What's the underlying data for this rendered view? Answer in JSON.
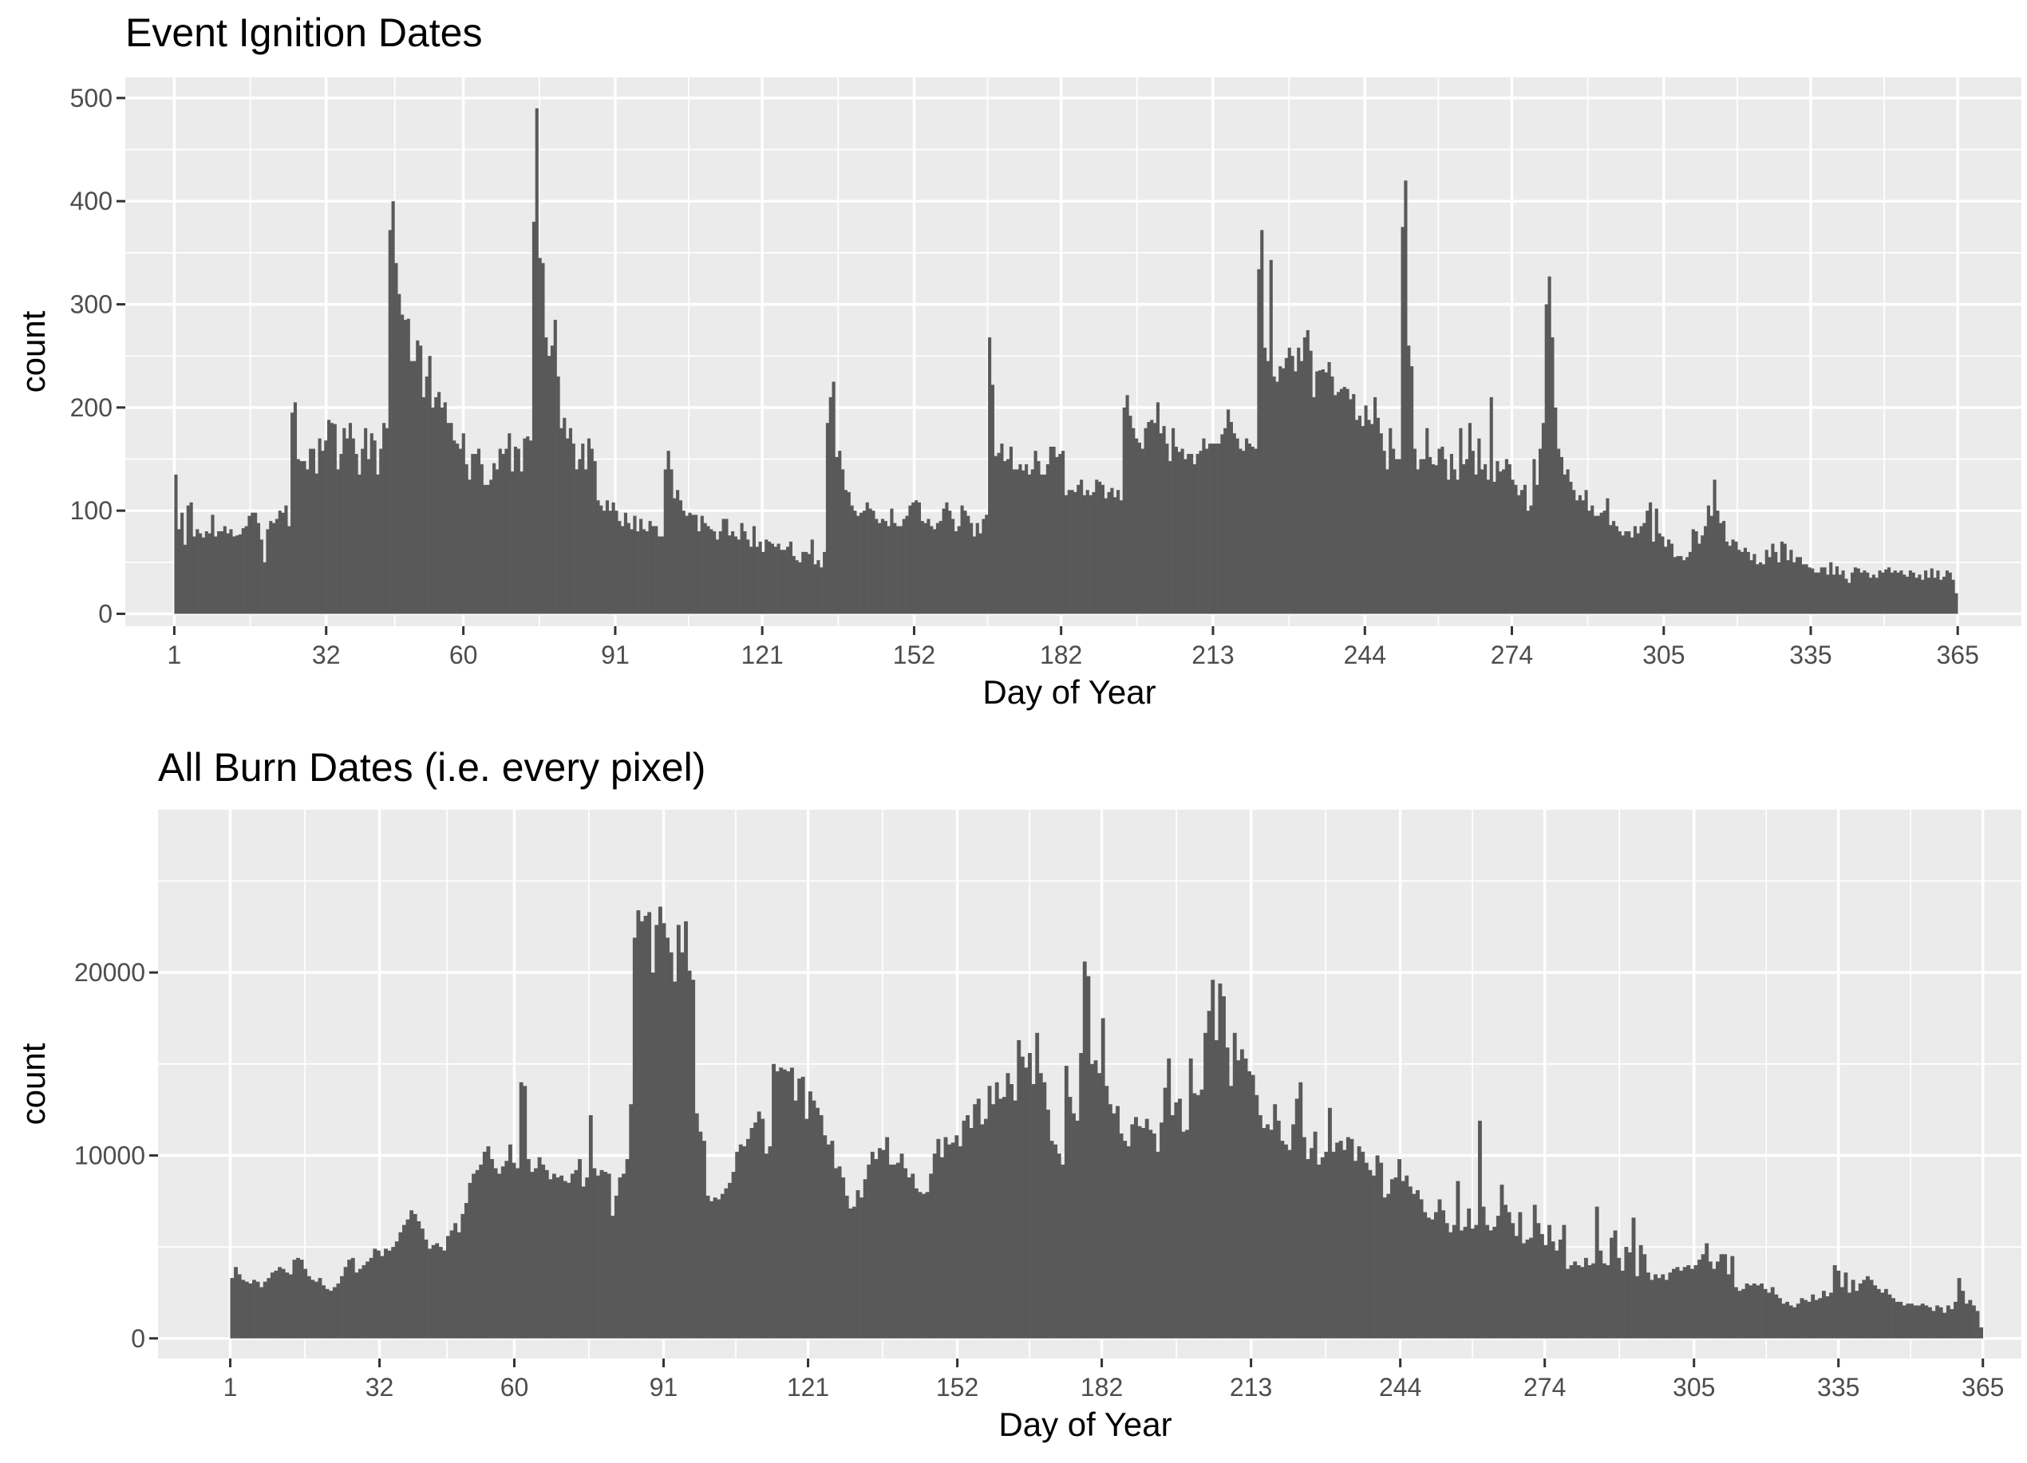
{
  "colors": {
    "bar": "#595959",
    "panel": "#ebebeb",
    "grid": "#ffffff",
    "tick_text": "#4d4d4d"
  },
  "chart_data": [
    {
      "type": "bar",
      "title": "Event Ignition Dates",
      "xlabel": "Day of Year",
      "ylabel": "count",
      "xlim": [
        -9,
        378
      ],
      "ylim": [
        -12,
        520
      ],
      "x_ticks": [
        1,
        32,
        60,
        91,
        121,
        152,
        182,
        213,
        244,
        274,
        305,
        335,
        365
      ],
      "y_ticks": [
        0,
        100,
        200,
        300,
        400,
        500
      ],
      "y_tick_labels": [
        "0",
        "100",
        "200",
        "300",
        "400",
        "500"
      ],
      "grid": true,
      "legend": "none",
      "x_start": 1,
      "values": [
        135,
        82,
        98,
        67,
        105,
        108,
        75,
        82,
        78,
        74,
        80,
        78,
        96,
        75,
        80,
        80,
        85,
        78,
        82,
        75,
        76,
        77,
        83,
        85,
        95,
        98,
        98,
        88,
        72,
        50,
        82,
        90,
        88,
        92,
        100,
        98,
        105,
        85,
        195,
        205,
        150,
        148,
        148,
        140,
        160,
        160,
        136,
        170,
        158,
        168,
        188,
        185,
        184,
        140,
        155,
        180,
        170,
        185,
        170,
        155,
        135,
        160,
        180,
        150,
        175,
        168,
        135,
        160,
        185,
        180,
        372,
        400,
        340,
        310,
        290,
        285,
        286,
        245,
        245,
        265,
        260,
        210,
        230,
        250,
        200,
        210,
        215,
        200,
        205,
        185,
        185,
        168,
        165,
        160,
        175,
        145,
        130,
        155,
        155,
        160,
        145,
        125,
        125,
        130,
        146,
        140,
        160,
        155,
        160,
        175,
        138,
        162,
        160,
        138,
        170,
        172,
        168,
        380,
        490,
        345,
        340,
        268,
        250,
        260,
        285,
        230,
        180,
        190,
        170,
        180,
        165,
        140,
        150,
        165,
        140,
        170,
        160,
        148,
        110,
        105,
        100,
        110,
        100,
        108,
        100,
        90,
        85,
        98,
        88,
        82,
        95,
        80,
        92,
        82,
        80,
        90,
        85,
        85,
        75,
        75,
        140,
        158,
        140,
        112,
        120,
        110,
        100,
        95,
        98,
        96,
        96,
        80,
        95,
        88,
        85,
        82,
        80,
        72,
        80,
        92,
        92,
        76,
        80,
        75,
        72,
        88,
        80,
        72,
        65,
        85,
        65,
        70,
        60,
        72,
        70,
        68,
        65,
        68,
        62,
        62,
        65,
        70,
        56,
        52,
        50,
        60,
        60,
        58,
        72,
        48,
        52,
        45,
        60,
        185,
        210,
        225,
        152,
        158,
        140,
        120,
        118,
        105,
        100,
        95,
        98,
        100,
        108,
        102,
        100,
        92,
        88,
        92,
        90,
        85,
        102,
        88,
        85,
        85,
        92,
        95,
        105,
        108,
        110,
        108,
        90,
        88,
        92,
        85,
        82,
        88,
        90,
        102,
        108,
        100,
        92,
        80,
        85,
        105,
        100,
        95,
        88,
        75,
        88,
        78,
        92,
        96,
        268,
        222,
        153,
        156,
        165,
        148,
        150,
        162,
        140,
        140,
        145,
        139,
        145,
        135,
        140,
        158,
        148,
        135,
        135,
        145,
        162,
        162,
        152,
        155,
        158,
        115,
        120,
        120,
        118,
        125,
        130,
        115,
        120,
        115,
        118,
        130,
        128,
        125,
        112,
        118,
        122,
        113,
        120,
        110,
        200,
        212,
        192,
        180,
        170,
        166,
        160,
        180,
        186,
        188,
        185,
        205,
        175,
        182,
        165,
        148,
        180,
        162,
        157,
        160,
        150,
        155,
        155,
        145,
        155,
        158,
        170,
        160,
        165,
        165,
        165,
        165,
        174,
        180,
        198,
        186,
        175,
        170,
        160,
        158,
        170,
        165,
        162,
        160,
        334,
        372,
        258,
        245,
        343,
        230,
        225,
        240,
        238,
        248,
        258,
        250,
        235,
        258,
        245,
        268,
        275,
        255,
        210,
        235,
        236,
        237,
        234,
        244,
        230,
        212,
        215,
        218,
        220,
        218,
        208,
        213,
        188,
        192,
        182,
        202,
        188,
        184,
        210,
        190,
        175,
        158,
        140,
        180,
        160,
        150,
        150,
        375,
        420,
        260,
        240,
        160,
        140,
        150,
        150,
        180,
        152,
        145,
        144,
        160,
        162,
        150,
        130,
        155,
        140,
        130,
        180,
        145,
        150,
        185,
        158,
        135,
        170,
        140,
        145,
        130,
        210,
        128,
        148,
        138,
        140,
        150,
        145,
        130,
        125,
        115,
        120,
        125,
        100,
        105,
        150,
        125,
        160,
        185,
        300,
        327,
        268,
        200,
        160,
        152,
        135,
        140,
        128,
        120,
        110,
        115,
        110,
        120,
        100,
        105,
        95,
        95,
        98,
        100,
        112,
        86,
        90,
        85,
        80,
        76,
        80,
        80,
        74,
        85,
        78,
        85,
        88,
        100,
        108,
        70,
        102,
        78,
        75,
        65,
        72,
        68,
        55,
        56,
        56,
        52,
        55,
        60,
        82,
        80,
        68,
        76,
        85,
        105,
        95,
        130,
        100,
        88,
        90,
        70,
        66,
        72,
        70,
        62,
        60,
        64,
        60,
        52,
        58,
        48,
        50,
        48,
        62,
        55,
        68,
        60,
        50,
        70,
        68,
        52,
        62,
        50,
        55,
        55,
        48,
        48,
        45,
        44,
        40,
        40,
        45,
        45,
        38,
        50,
        38,
        46,
        38,
        42,
        34,
        30,
        40,
        45,
        44,
        40,
        42,
        40,
        35,
        38,
        35,
        42,
        40,
        43,
        45,
        40,
        42,
        40,
        42,
        38,
        36,
        42,
        40,
        35,
        38,
        33,
        42,
        35,
        44,
        35,
        42,
        33,
        36,
        42,
        40,
        33,
        20
      ],
      "x_start_note": ""
    },
    {
      "type": "bar",
      "title": "All Burn Dates (i.e. every pixel)",
      "xlabel": "Day of Year",
      "ylabel": "count",
      "xlim": [
        -14,
        373
      ],
      "ylim": [
        -1100,
        28900
      ],
      "x_ticks": [
        1,
        32,
        60,
        91,
        121,
        152,
        182,
        213,
        244,
        274,
        305,
        335,
        365
      ],
      "y_ticks": [
        0,
        10000,
        20000
      ],
      "y_tick_labels": [
        "0",
        "10000",
        "20000"
      ],
      "grid": true,
      "legend": "none",
      "x_start": 1,
      "values": [
        3300,
        3900,
        3500,
        3200,
        3100,
        3000,
        3200,
        3100,
        2800,
        3100,
        3300,
        3600,
        3700,
        3900,
        3800,
        3600,
        3500,
        4300,
        4400,
        4300,
        3800,
        3400,
        3200,
        3100,
        3300,
        2900,
        2700,
        2600,
        2800,
        3000,
        3400,
        3900,
        4300,
        4400,
        3600,
        3800,
        4000,
        4200,
        4400,
        4900,
        4800,
        4500,
        4900,
        4800,
        5000,
        5300,
        5800,
        6200,
        6500,
        7000,
        6800,
        6400,
        6000,
        5400,
        4900,
        5100,
        5200,
        5000,
        4800,
        5600,
        5900,
        6300,
        5800,
        6800,
        7400,
        8500,
        9000,
        9200,
        9500,
        10200,
        10500,
        9800,
        9300,
        9000,
        9400,
        9700,
        10600,
        9600,
        9300,
        14000,
        13800,
        9800,
        9100,
        9300,
        9900,
        9500,
        9200,
        8700,
        9000,
        8800,
        8900,
        8600,
        8500,
        9000,
        9200,
        9800,
        8300,
        8800,
        12200,
        9300,
        8900,
        9200,
        9100,
        9000,
        6700,
        7800,
        8800,
        9000,
        9800,
        12800,
        21900,
        23400,
        22800,
        23100,
        23300,
        20000,
        22600,
        23600,
        22700,
        21900,
        21100,
        19500,
        22600,
        21100,
        22800,
        20100,
        19600,
        12300,
        11300,
        10800,
        7800,
        7500,
        7700,
        7600,
        7900,
        8200,
        8500,
        9100,
        10200,
        10600,
        10500,
        10900,
        11500,
        11800,
        12400,
        12000,
        10100,
        10500,
        15000,
        14600,
        14800,
        14700,
        14600,
        14800,
        13000,
        14200,
        14300,
        12000,
        13500,
        13000,
        12600,
        12200,
        11100,
        10600,
        10800,
        9300,
        9400,
        8800,
        7800,
        7100,
        7200,
        8100,
        7700,
        8700,
        9500,
        10200,
        9800,
        10400,
        10300,
        11000,
        9500,
        9500,
        9600,
        10100,
        9300,
        8800,
        9000,
        8200,
        8000,
        7900,
        8000,
        9000,
        10100,
        10900,
        9900,
        11000,
        10600,
        10700,
        11100,
        10500,
        11900,
        12200,
        11500,
        12800,
        13100,
        11700,
        12000,
        13800,
        12800,
        14000,
        13100,
        13200,
        14500,
        13900,
        13000,
        16300,
        15400,
        14800,
        15600,
        13900,
        16700,
        14500,
        14000,
        12500,
        10800,
        10600,
        10100,
        9500,
        14900,
        13200,
        12300,
        11900,
        15600,
        20600,
        19800,
        15000,
        15200,
        14500,
        17500,
        13800,
        12800,
        12300,
        12700,
        11200,
        10800,
        10500,
        11700,
        12100,
        11600,
        11500,
        12000,
        11400,
        11200,
        10200,
        11800,
        13700,
        15300,
        12200,
        12900,
        13100,
        11300,
        11400,
        15300,
        13400,
        13300,
        13600,
        16700,
        17900,
        19600,
        16300,
        19400,
        18700,
        15900,
        13800,
        16700,
        15200,
        15800,
        15300,
        14600,
        14400,
        13300,
        12200,
        11500,
        11700,
        11400,
        12800,
        11900,
        10800,
        10600,
        10300,
        11700,
        13100,
        14000,
        11000,
        9800,
        10400,
        11300,
        9500,
        9900,
        10200,
        12600,
        10200,
        10700,
        10800,
        10300,
        11000,
        10900,
        9700,
        10500,
        10200,
        9600,
        9200,
        8900,
        10000,
        9600,
        7700,
        7900,
        8700,
        8800,
        9800,
        8600,
        8900,
        8300,
        7900,
        8100,
        7600,
        6900,
        6600,
        6500,
        6900,
        7600,
        7000,
        6300,
        5800,
        6200,
        8600,
        5900,
        6100,
        7100,
        6000,
        6200,
        11900,
        7200,
        6200,
        5900,
        6100,
        6700,
        8400,
        7300,
        6900,
        6300,
        5600,
        6900,
        5200,
        5400,
        5500,
        7300,
        6300,
        5700,
        5100,
        6200,
        5300,
        4800,
        5400,
        6200,
        3800,
        4000,
        4200,
        4000,
        3900,
        4400,
        4000,
        4100,
        7200,
        4800,
        4100,
        4000,
        5500,
        5900,
        4400,
        3700,
        5000,
        4700,
        6600,
        3400,
        5100,
        4600,
        3600,
        3200,
        3500,
        3300,
        3500,
        3200,
        3600,
        3800,
        3900,
        3700,
        3900,
        4000,
        3800,
        4000,
        4300,
        4600,
        5200,
        4200,
        3800,
        4200,
        4600,
        4600,
        3500,
        4500,
        2800,
        2600,
        2700,
        3000,
        2900,
        3000,
        2900,
        3000,
        2700,
        2500,
        2800,
        2400,
        2200,
        1900,
        2000,
        1800,
        1700,
        1900,
        2200,
        2100,
        2000,
        2400,
        2100,
        2200,
        2600,
        2300,
        2500,
        4000,
        3700,
        2800,
        3600,
        2500,
        3200,
        2600,
        3000,
        3200,
        3400,
        3200,
        2900,
        2700,
        2500,
        2700,
        2400,
        2200,
        2000,
        2000,
        1800,
        1900,
        1900,
        1800,
        1800,
        1900,
        1800,
        1700,
        1500,
        1800,
        1700,
        1400,
        1800,
        1600,
        2000,
        3300,
        2600,
        1900,
        2100,
        1800,
        1500,
        600
      ]
    }
  ]
}
